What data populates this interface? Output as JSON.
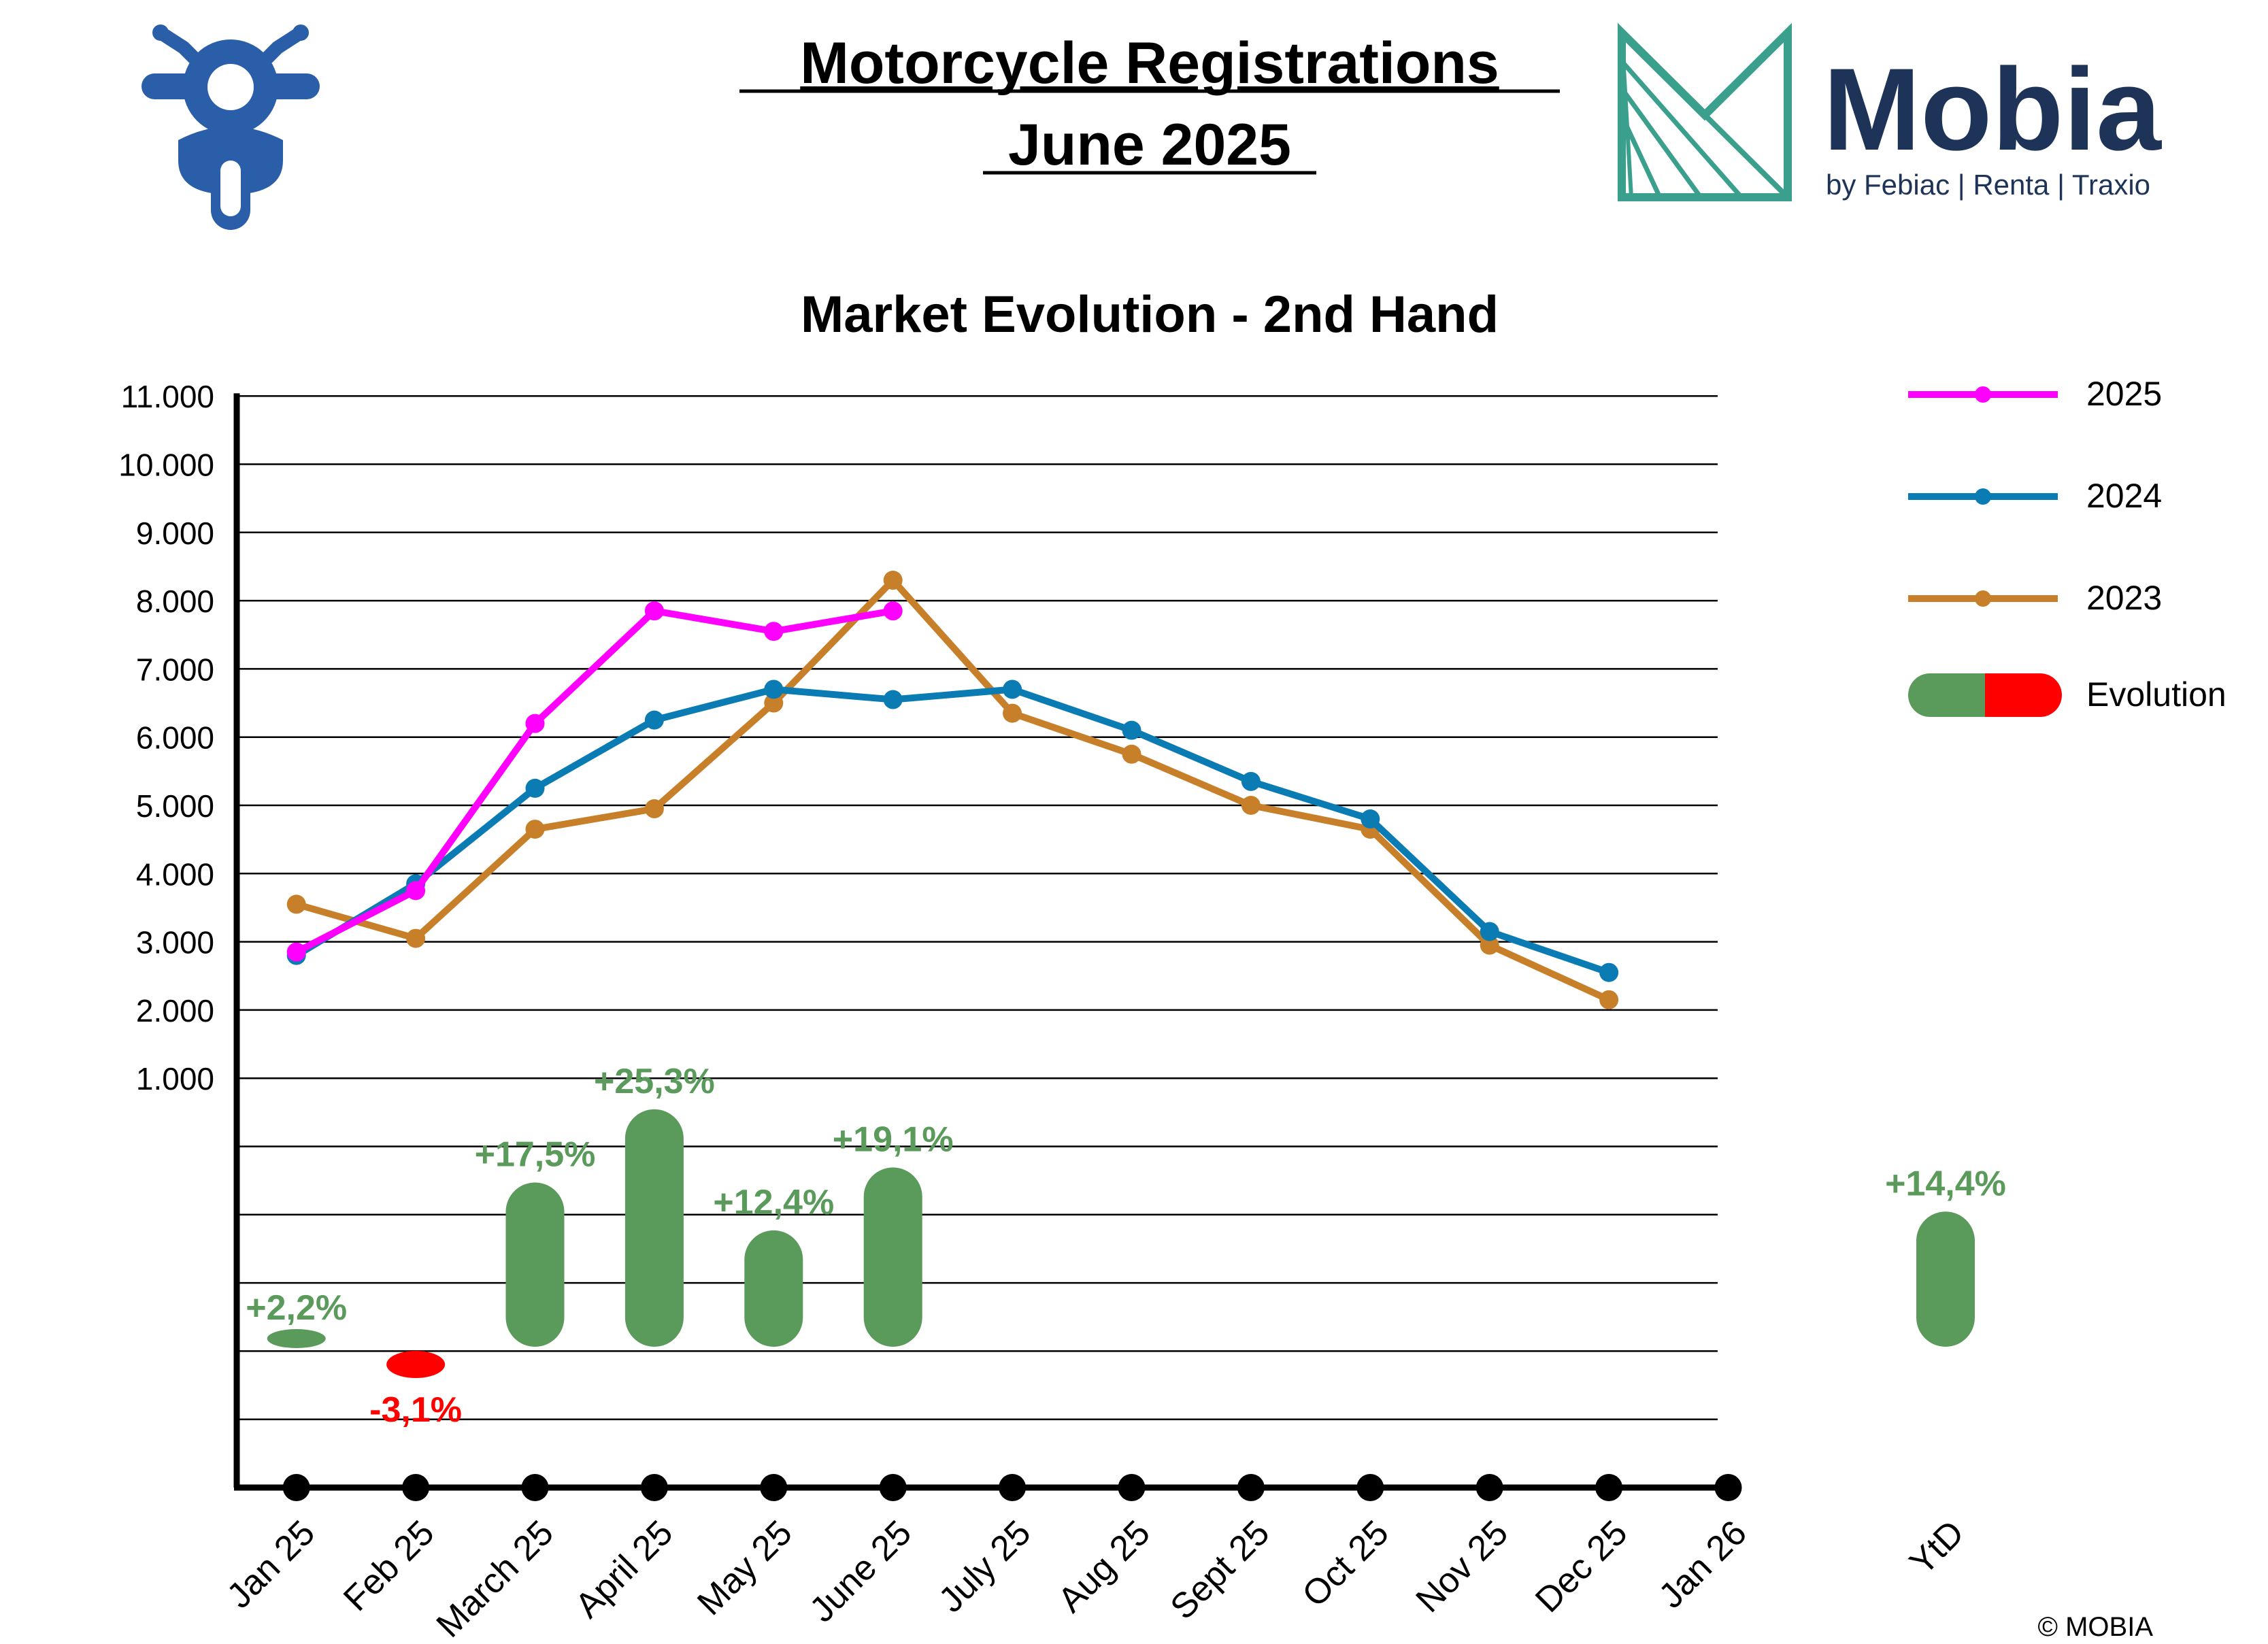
{
  "header": {
    "title_line1": "Motorcycle Registrations",
    "title_line2": "June 2025",
    "logo_wordmark": "Mobia",
    "logo_tagline": "by Febiac | Renta | Traxio",
    "moto_icon": "motorcycle-icon",
    "logo_icon": "mobia-logo-mark"
  },
  "footer": {
    "copyright": "© MOBIA"
  },
  "colors": {
    "s2025": "#ff00ff",
    "s2024": "#0a7bb3",
    "s2023": "#c87f29",
    "positive": "#5a9a5a",
    "negative": "#ff0000",
    "icon_blue": "#2a5ea8",
    "logo_teal": "#3aa08d",
    "logo_navy": "#1e3358"
  },
  "chart_data": {
    "type": "line",
    "title": "Market Evolution - 2nd Hand",
    "categories": [
      "Jan 25",
      "Feb 25",
      "March 25",
      "April 25",
      "May 25",
      "June 25",
      "July 25",
      "Aug 25",
      "Sept 25",
      "Oct 25",
      "Nov 25",
      "Dec 25",
      "Jan 26"
    ],
    "y_ticks": [
      "1.000",
      "2.000",
      "3.000",
      "4.000",
      "5.000",
      "6.000",
      "7.000",
      "8.000",
      "9.000",
      "10.000",
      "11.000"
    ],
    "ylim": [
      -5000,
      11000
    ],
    "grid": true,
    "legend_position": "right",
    "series": [
      {
        "name": "2025",
        "color_key": "s2025",
        "values": [
          2850,
          3750,
          6200,
          7850,
          7550,
          7850,
          null,
          null,
          null,
          null,
          null,
          null,
          null
        ]
      },
      {
        "name": "2024",
        "color_key": "s2024",
        "values": [
          2800,
          3850,
          5250,
          6250,
          6700,
          6550,
          6700,
          6100,
          5350,
          4800,
          3150,
          2550,
          null
        ]
      },
      {
        "name": "2023",
        "color_key": "s2023",
        "values": [
          3550,
          3050,
          4650,
          4950,
          6500,
          8300,
          6350,
          5750,
          5000,
          4650,
          2950,
          2150,
          null
        ]
      }
    ],
    "evolution": {
      "legend_label": "Evolution",
      "values": [
        2.2,
        -3.1,
        17.5,
        25.3,
        12.4,
        19.1
      ],
      "labels": [
        "+2,2%",
        "-3,1%",
        "+17,5%",
        "+25,3%",
        "+12,4%",
        "+19,1%"
      ],
      "ytd_category": "YtD",
      "ytd_value": 14.4,
      "ytd_label": "+14,4%"
    }
  }
}
